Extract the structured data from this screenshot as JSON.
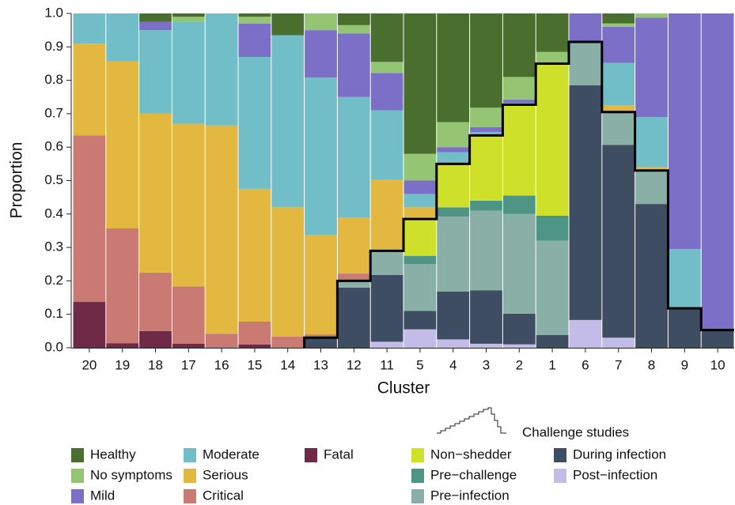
{
  "chart_data": {
    "type": "stacked_bar",
    "ylabel": "Proportion",
    "xlabel": "Cluster",
    "categories": [
      "20",
      "19",
      "18",
      "17",
      "16",
      "15",
      "14",
      "13",
      "12",
      "11",
      "5",
      "4",
      "3",
      "2",
      "1",
      "6",
      "7",
      "8",
      "9",
      "10"
    ],
    "ylim": [
      0,
      1
    ],
    "yticks": [
      {
        "value": 0,
        "label": "0.0"
      },
      0.1,
      0.2,
      0.3,
      0.4,
      0.5,
      0.6,
      0.7,
      0.8,
      0.9,
      {
        "value": 1,
        "label": "1.0"
      }
    ],
    "challenge_title": "Challenge studies",
    "series": [
      {
        "name": "Post−infection",
        "color": "#c3bbe8",
        "challenge": true,
        "values": [
          0,
          0,
          0,
          0,
          0,
          0,
          0,
          0,
          0,
          0.018,
          0.055,
          0.025,
          0.012,
          0.01,
          0,
          0.083,
          0.03,
          0,
          0,
          0
        ]
      },
      {
        "name": "During infection",
        "color": "#3f4d63",
        "challenge": true,
        "values": [
          0,
          0,
          0,
          0,
          0,
          0,
          0,
          0.03,
          0.18,
          0.2,
          0.055,
          0.143,
          0.16,
          0.092,
          0.038,
          0.702,
          0.577,
          0.43,
          0.118,
          0.053
        ]
      },
      {
        "name": "Pre−infection",
        "color": "#8aafa6",
        "challenge": true,
        "values": [
          0,
          0,
          0,
          0,
          0,
          0,
          0,
          0,
          0.02,
          0.072,
          0.14,
          0.224,
          0.238,
          0.298,
          0.282,
          0.13,
          0.098,
          0.1,
          0,
          0
        ]
      },
      {
        "name": "Pre−challenge",
        "color": "#4f9585",
        "challenge": true,
        "values": [
          0,
          0,
          0,
          0,
          0,
          0,
          0,
          0,
          0,
          0,
          0.025,
          0.028,
          0.03,
          0.055,
          0.075,
          0,
          0,
          0,
          0,
          0
        ]
      },
      {
        "name": "Non−shedder",
        "color": "#cfe02a",
        "challenge": true,
        "values": [
          0,
          0,
          0,
          0,
          0,
          0,
          0,
          0,
          0,
          0,
          0.11,
          0.13,
          0.195,
          0.272,
          0.455,
          0,
          0,
          0,
          0,
          0
        ]
      },
      {
        "name": "Fatal",
        "color": "#6e2a46",
        "values": [
          0.137,
          0.013,
          0.05,
          0.012,
          0,
          0.01,
          0,
          0,
          0,
          0,
          0,
          0,
          0,
          0,
          0,
          0,
          0,
          0,
          0,
          0
        ]
      },
      {
        "name": "Critical",
        "color": "#c97a72",
        "values": [
          0.498,
          0.344,
          0.175,
          0.171,
          0.042,
          0.068,
          0.033,
          0.01,
          0.022,
          0,
          0,
          0,
          0,
          0,
          0,
          0,
          0,
          0,
          0,
          0
        ]
      },
      {
        "name": "Serious",
        "color": "#e2b840",
        "values": [
          0.275,
          0.5,
          0.475,
          0.487,
          0.623,
          0.397,
          0.387,
          0.298,
          0.168,
          0.212,
          0.035,
          0,
          0,
          0,
          0,
          0,
          0.02,
          0.01,
          0,
          0
        ]
      },
      {
        "name": "Moderate",
        "color": "#72bec8",
        "values": [
          0.09,
          0.143,
          0.25,
          0.305,
          0.335,
          0.395,
          0.515,
          0.47,
          0.36,
          0.208,
          0.04,
          0.035,
          0.01,
          0.005,
          0,
          0,
          0.127,
          0.15,
          0.177,
          0
        ]
      },
      {
        "name": "Mild",
        "color": "#7b6fc8",
        "values": [
          0,
          0,
          0.025,
          0,
          0,
          0.1,
          0,
          0.142,
          0.19,
          0.112,
          0.04,
          0.015,
          0.015,
          0.01,
          0,
          0.085,
          0.108,
          0.297,
          0.705,
          0.947
        ]
      },
      {
        "name": "No symptoms",
        "color": "#93c572",
        "values": [
          0,
          0,
          0,
          0.015,
          0,
          0.02,
          0,
          0.05,
          0.025,
          0.033,
          0.08,
          0.075,
          0.058,
          0.068,
          0.035,
          0,
          0.01,
          0.013,
          0,
          0
        ]
      },
      {
        "name": "Healthy",
        "color": "#4a6e2e",
        "values": [
          0,
          0,
          0.025,
          0.01,
          0,
          0.01,
          0.065,
          0,
          0.035,
          0.145,
          0.42,
          0.325,
          0.282,
          0.19,
          0.115,
          0,
          0.03,
          0,
          0,
          0
        ]
      }
    ]
  }
}
